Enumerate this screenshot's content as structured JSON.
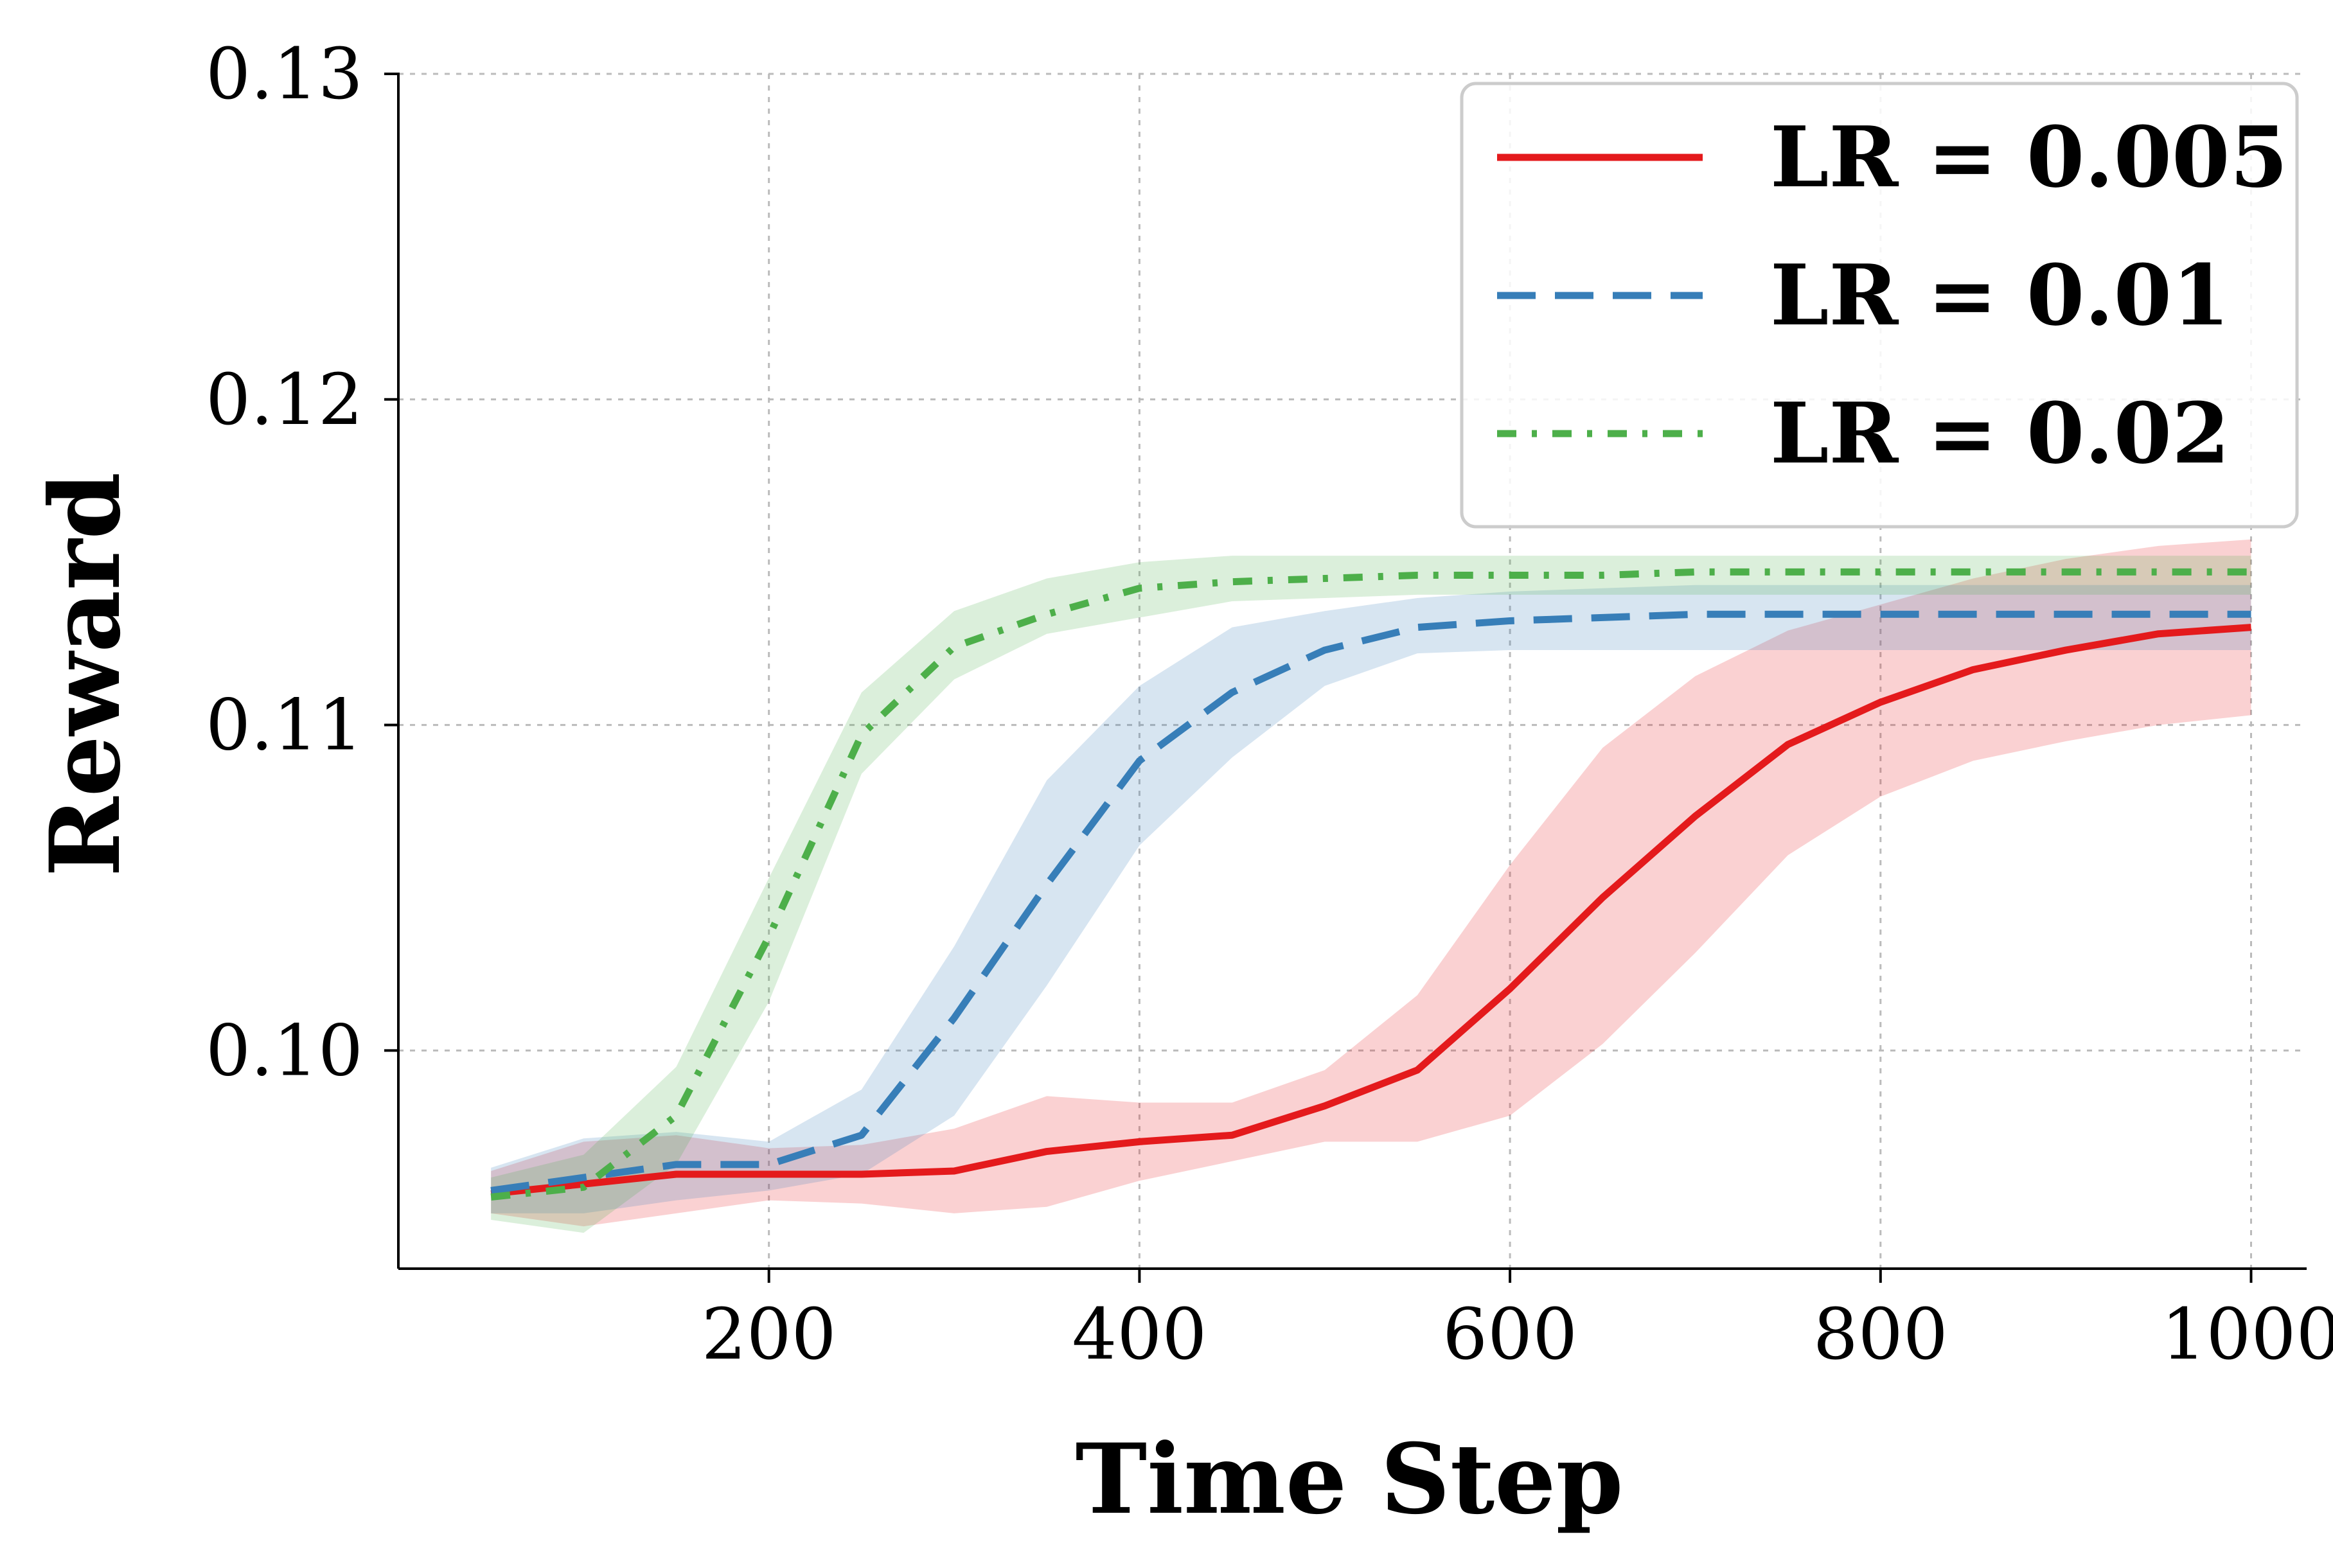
{
  "chart_data": {
    "type": "line",
    "title": "",
    "xlabel": "Time Step",
    "ylabel": "Reward",
    "xlim": [
      0,
      1030
    ],
    "ylim": [
      0.0933,
      0.13
    ],
    "xticks": [
      200,
      400,
      600,
      800,
      1000
    ],
    "xtick_labels": [
      "200",
      "400",
      "600",
      "800",
      "1000"
    ],
    "yticks": [
      0.1,
      0.11,
      0.12,
      0.13
    ],
    "ytick_labels": [
      "0.10",
      "0.11",
      "0.12",
      "0.13"
    ],
    "grid": true,
    "legend_position": "top-right",
    "x": [
      50,
      100,
      150,
      200,
      250,
      300,
      350,
      400,
      450,
      500,
      550,
      600,
      650,
      700,
      750,
      800,
      850,
      900,
      950,
      1000
    ],
    "series": [
      {
        "name": "LR = 0.005",
        "color": "#e41a1c",
        "line_style": "solid",
        "values": [
          0.0956,
          0.0959,
          0.0962,
          0.0962,
          0.0962,
          0.0963,
          0.0969,
          0.0972,
          0.0974,
          0.0983,
          0.0994,
          0.1019,
          0.1047,
          0.1072,
          0.1094,
          0.1107,
          0.1117,
          0.1123,
          0.1128,
          0.113
        ],
        "lower": [
          0.095,
          0.0946,
          0.095,
          0.0954,
          0.0953,
          0.095,
          0.0952,
          0.096,
          0.0966,
          0.0972,
          0.0972,
          0.098,
          0.1002,
          0.103,
          0.106,
          0.1078,
          0.1089,
          0.1095,
          0.11,
          0.1103
        ],
        "upper": [
          0.0963,
          0.0972,
          0.0974,
          0.097,
          0.0971,
          0.0976,
          0.0986,
          0.0984,
          0.0984,
          0.0994,
          0.1017,
          0.1057,
          0.1093,
          0.1115,
          0.1129,
          0.1137,
          0.1145,
          0.1151,
          0.1155,
          0.1157
        ]
      },
      {
        "name": "LR = 0.01",
        "color": "#377eb8",
        "line_style": "dashed",
        "values": [
          0.0957,
          0.0961,
          0.0965,
          0.0965,
          0.0974,
          0.101,
          0.1051,
          0.1089,
          0.111,
          0.1123,
          0.113,
          0.1132,
          0.1133,
          0.1134,
          0.1134,
          0.1134,
          0.1134,
          0.1134,
          0.1134,
          0.1134
        ],
        "lower": [
          0.095,
          0.095,
          0.0954,
          0.0957,
          0.0962,
          0.098,
          0.102,
          0.1063,
          0.109,
          0.1112,
          0.1122,
          0.1123,
          0.1123,
          0.1123,
          0.1123,
          0.1123,
          0.1123,
          0.1123,
          0.1123,
          0.1123
        ],
        "upper": [
          0.0964,
          0.0973,
          0.0975,
          0.0972,
          0.0988,
          0.1032,
          0.1083,
          0.1112,
          0.113,
          0.1135,
          0.1139,
          0.1141,
          0.1142,
          0.1143,
          0.1143,
          0.1143,
          0.1143,
          0.1143,
          0.1143,
          0.1143
        ]
      },
      {
        "name": "LR = 0.02",
        "color": "#4daf4a",
        "line_style": "dashdot",
        "values": [
          0.0955,
          0.0958,
          0.098,
          0.1035,
          0.1097,
          0.1124,
          0.1134,
          0.1142,
          0.1144,
          0.1145,
          0.1146,
          0.1146,
          0.1146,
          0.1147,
          0.1147,
          0.1147,
          0.1147,
          0.1147,
          0.1147,
          0.1147
        ],
        "lower": [
          0.0948,
          0.0944,
          0.0965,
          0.1015,
          0.1085,
          0.1114,
          0.1128,
          0.1133,
          0.1138,
          0.1139,
          0.114,
          0.114,
          0.114,
          0.114,
          0.114,
          0.114,
          0.114,
          0.114,
          0.114,
          0.114
        ],
        "upper": [
          0.0961,
          0.0968,
          0.0995,
          0.1053,
          0.111,
          0.1135,
          0.1145,
          0.115,
          0.1152,
          0.1152,
          0.1152,
          0.1152,
          0.1152,
          0.1152,
          0.1152,
          0.1152,
          0.1152,
          0.1152,
          0.1152,
          0.1152
        ]
      }
    ]
  }
}
